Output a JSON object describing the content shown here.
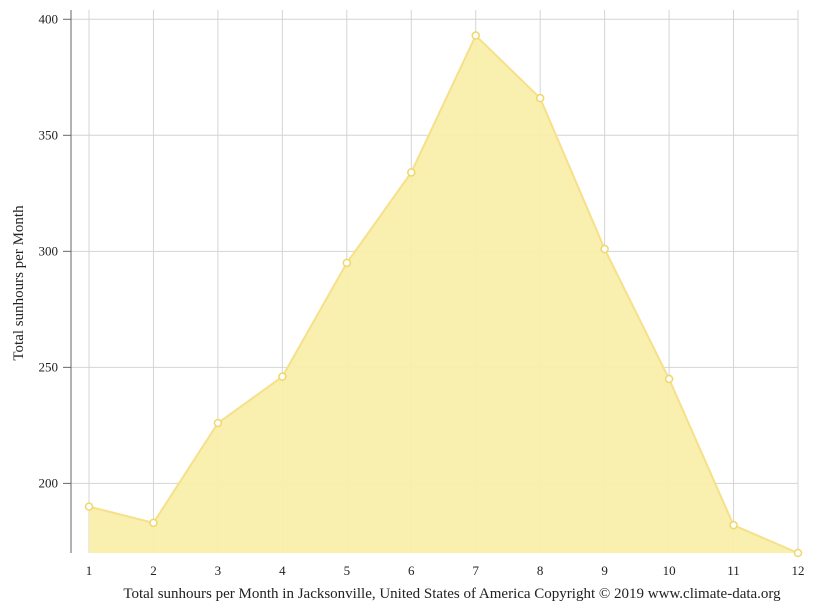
{
  "chart_data": {
    "type": "area",
    "title": "",
    "xlabel": "",
    "ylabel": "Total sunhours per Month",
    "caption": "Total sunhours per Month in Jacksonville, United States of America Copyright © 2019 www.climate-data.org",
    "x": [
      1,
      2,
      3,
      4,
      5,
      6,
      7,
      8,
      9,
      10,
      11,
      12
    ],
    "y_ticks": [
      200,
      250,
      300,
      350,
      400
    ],
    "ylim": [
      170,
      404
    ],
    "grid": true,
    "legend": "none",
    "series": [
      {
        "values": [
          190,
          183,
          226,
          246,
          295,
          334,
          393,
          366,
          301,
          245,
          182,
          170
        ],
        "fill_color": "#f9eeaa",
        "line_color": "#f6e08a",
        "marker_color": "#f0d76b"
      }
    ]
  }
}
